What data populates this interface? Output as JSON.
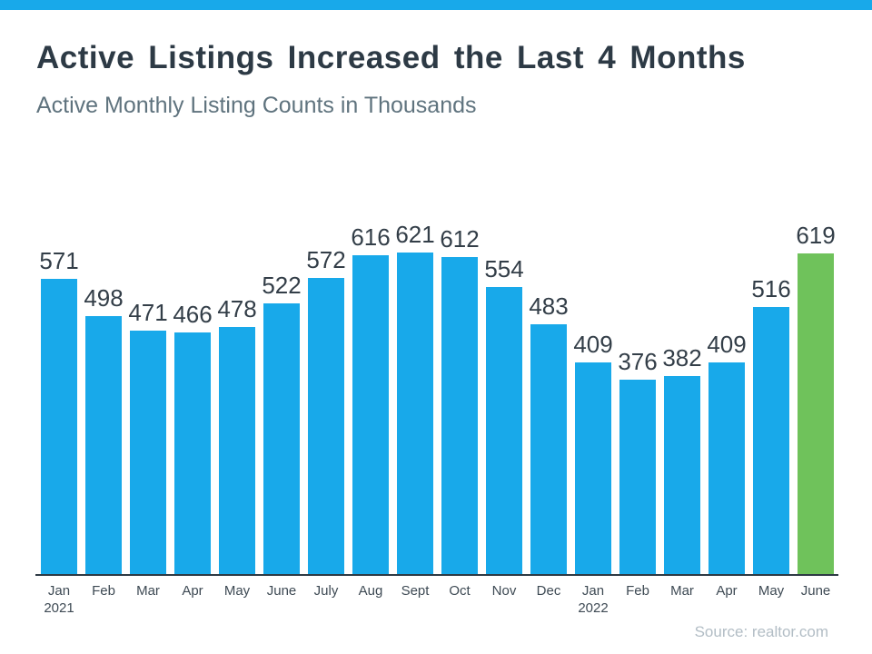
{
  "header": {
    "title": "Active Listings Increased the Last 4 Months",
    "subtitle": "Active Monthly Listing Counts in Thousands"
  },
  "footer": {
    "source": "Source: realtor.com"
  },
  "theme": {
    "top_strip_color": "#18A9EA",
    "bar_color": "#18A9EA",
    "highlight_bar_color": "#6FC25B",
    "title_color": "#2D3A45",
    "subtitle_color": "#5F737E",
    "value_label_color": "#333E48",
    "tick_label_color": "#3E4A54",
    "axis_line_color": "#2E3A44",
    "source_color": "#B2BDC5"
  },
  "chart_data": {
    "type": "bar",
    "title": "Active Listings Increased the Last 4 Months",
    "subtitle": "Active Monthly Listing Counts in Thousands",
    "unit": "thousands",
    "categories": [
      {
        "month": "Jan",
        "year": "2021"
      },
      {
        "month": "Feb",
        "year": ""
      },
      {
        "month": "Mar",
        "year": ""
      },
      {
        "month": "Apr",
        "year": ""
      },
      {
        "month": "May",
        "year": ""
      },
      {
        "month": "June",
        "year": ""
      },
      {
        "month": "July",
        "year": ""
      },
      {
        "month": "Aug",
        "year": ""
      },
      {
        "month": "Sept",
        "year": ""
      },
      {
        "month": "Oct",
        "year": ""
      },
      {
        "month": "Nov",
        "year": ""
      },
      {
        "month": "Dec",
        "year": ""
      },
      {
        "month": "Jan",
        "year": "2022"
      },
      {
        "month": "Feb",
        "year": ""
      },
      {
        "month": "Mar",
        "year": ""
      },
      {
        "month": "Apr",
        "year": ""
      },
      {
        "month": "May",
        "year": ""
      },
      {
        "month": "June",
        "year": ""
      }
    ],
    "values": [
      571,
      498,
      471,
      466,
      478,
      522,
      572,
      616,
      621,
      612,
      554,
      483,
      409,
      376,
      382,
      409,
      516,
      619
    ],
    "highlight_index": 17,
    "data_labels_shown": true,
    "grid": false,
    "legend": null,
    "ylim": [
      0,
      621
    ],
    "xlabel": "",
    "ylabel": "",
    "source": "Source: realtor.com"
  }
}
